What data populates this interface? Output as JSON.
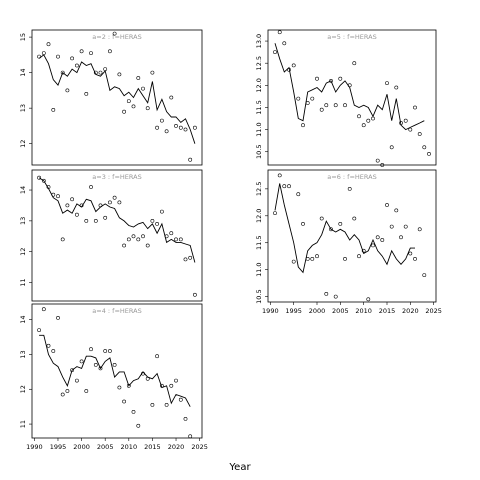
{
  "x_axis_title": "Year",
  "chart_data": [
    {
      "type": "line",
      "strip_label": "a=2 : f=HERAS",
      "x": [
        1991,
        1992,
        1993,
        1994,
        1995,
        1996,
        1997,
        1998,
        1999,
        2000,
        2001,
        2002,
        2003,
        2004,
        2005,
        2006,
        2007,
        2008,
        2009,
        2010,
        2011,
        2012,
        2013,
        2014,
        2015,
        2016,
        2017,
        2018,
        2019,
        2020,
        2021,
        2022,
        2023,
        2024
      ],
      "series": [
        {
          "style": "points",
          "values": [
            14.45,
            14.55,
            14.8,
            12.95,
            14.45,
            14.0,
            13.5,
            14.4,
            14.2,
            14.6,
            13.4,
            14.55,
            14.0,
            14.0,
            14.1,
            14.6,
            15.1,
            13.95,
            12.9,
            13.2,
            13.05,
            13.85,
            13.55,
            13.0,
            14.0,
            12.45,
            12.65,
            12.35,
            13.3,
            12.5,
            12.45,
            12.4,
            11.55,
            12.45
          ]
        },
        {
          "style": "line",
          "values": [
            14.4,
            14.5,
            14.25,
            13.8,
            13.65,
            14.0,
            13.9,
            14.1,
            14.0,
            14.3,
            14.2,
            14.25,
            13.95,
            13.9,
            14.05,
            13.5,
            13.6,
            13.55,
            13.35,
            13.45,
            13.3,
            13.55,
            13.35,
            13.15,
            13.75,
            12.95,
            13.25,
            12.9,
            12.75,
            12.75,
            12.6,
            12.7,
            12.4,
            12.0
          ]
        }
      ],
      "ylim": [
        11.4,
        15.2
      ],
      "yticks": [
        12,
        13,
        14,
        15
      ],
      "xlim": [
        1989.5,
        2025.5
      ],
      "xticks": [
        1990,
        1995,
        2000,
        2005,
        2010,
        2015,
        2020,
        2025
      ],
      "show_xticks": false
    },
    {
      "type": "line",
      "strip_label": "a=3 : f=HERAS",
      "x": [
        1991,
        1992,
        1993,
        1994,
        1995,
        1996,
        1997,
        1998,
        1999,
        2000,
        2001,
        2002,
        2003,
        2004,
        2005,
        2006,
        2007,
        2008,
        2009,
        2010,
        2011,
        2012,
        2013,
        2014,
        2015,
        2016,
        2017,
        2018,
        2019,
        2020,
        2021,
        2022,
        2023,
        2024
      ],
      "series": [
        {
          "style": "points",
          "values": [
            14.4,
            14.3,
            14.1,
            13.85,
            13.8,
            12.4,
            13.5,
            13.7,
            13.2,
            13.5,
            13.0,
            14.1,
            13.0,
            13.5,
            13.1,
            13.6,
            13.75,
            13.6,
            12.2,
            12.4,
            12.5,
            12.4,
            12.5,
            12.2,
            13.0,
            12.9,
            13.3,
            12.5,
            12.6,
            12.4,
            12.4,
            11.75,
            11.8,
            10.6
          ]
        },
        {
          "style": "line",
          "values": [
            14.4,
            14.3,
            14.05,
            13.75,
            13.65,
            13.25,
            13.35,
            13.25,
            13.55,
            13.45,
            13.7,
            13.65,
            13.3,
            13.45,
            13.55,
            13.45,
            13.4,
            13.1,
            13.0,
            12.85,
            12.8,
            12.9,
            12.95,
            12.75,
            12.9,
            12.6,
            12.9,
            12.3,
            12.4,
            12.3,
            12.3,
            12.25,
            12.2,
            11.65
          ]
        }
      ],
      "ylim": [
        10.4,
        14.65
      ],
      "yticks": [
        11,
        12,
        13,
        14
      ],
      "xlim": [
        1989.5,
        2025.5
      ],
      "xticks": [
        1990,
        1995,
        2000,
        2005,
        2010,
        2015,
        2020,
        2025
      ],
      "show_xticks": false
    },
    {
      "type": "line",
      "strip_label": "a=4 : f=HERAS",
      "x": [
        1991,
        1992,
        1993,
        1994,
        1995,
        1996,
        1997,
        1998,
        1999,
        2000,
        2001,
        2002,
        2003,
        2004,
        2005,
        2006,
        2007,
        2008,
        2009,
        2010,
        2011,
        2012,
        2013,
        2014,
        2015,
        2016,
        2017,
        2018,
        2019,
        2020,
        2021,
        2022,
        2023,
        2024
      ],
      "series": [
        {
          "style": "points",
          "values": [
            13.7,
            14.3,
            13.25,
            13.1,
            14.05,
            11.85,
            11.95,
            12.55,
            12.25,
            12.8,
            11.95,
            13.15,
            12.7,
            12.6,
            13.1,
            13.1,
            12.7,
            12.05,
            11.65,
            12.1,
            11.35,
            10.95,
            12.45,
            12.3,
            11.55,
            12.95,
            12.1,
            11.55,
            12.1,
            12.25,
            11.7,
            11.15,
            10.65,
            null
          ]
        },
        {
          "style": "line",
          "values": [
            13.55,
            13.55,
            13.0,
            12.75,
            12.65,
            12.35,
            12.1,
            12.55,
            12.65,
            12.6,
            12.95,
            12.95,
            12.9,
            12.6,
            12.8,
            12.9,
            12.35,
            12.5,
            12.5,
            12.1,
            12.25,
            12.3,
            12.5,
            12.35,
            12.3,
            12.45,
            12.05,
            12.1,
            11.6,
            11.85,
            11.8,
            11.75,
            11.5,
            null
          ]
        }
      ],
      "ylim": [
        10.6,
        14.45
      ],
      "yticks": [
        11,
        12,
        13,
        14
      ],
      "xlim": [
        1989.5,
        2025.5
      ],
      "xticks": [
        1990,
        1995,
        2000,
        2005,
        2010,
        2015,
        2020,
        2025
      ],
      "xticklabels": [
        "1990",
        "1995",
        "2000",
        "2005",
        "2010",
        "2015",
        "2020",
        "2025"
      ],
      "show_xticks": true
    },
    {
      "type": "line",
      "strip_label": "a=5 : f=HERAS",
      "x": [
        1991,
        1992,
        1993,
        1994,
        1995,
        1996,
        1997,
        1998,
        1999,
        2000,
        2001,
        2002,
        2003,
        2004,
        2005,
        2006,
        2007,
        2008,
        2009,
        2010,
        2011,
        2012,
        2013,
        2014,
        2015,
        2016,
        2017,
        2018,
        2019,
        2020,
        2021,
        2022,
        2023,
        2024
      ],
      "series": [
        {
          "style": "points",
          "values": [
            12.75,
            13.2,
            12.95,
            12.35,
            12.45,
            11.7,
            11.1,
            11.6,
            11.7,
            12.15,
            11.45,
            11.55,
            12.1,
            11.55,
            12.15,
            11.55,
            12.0,
            12.5,
            11.3,
            11.1,
            11.2,
            11.25,
            10.3,
            10.2,
            12.05,
            10.6,
            11.95,
            11.15,
            11.2,
            11.0,
            11.5,
            10.9,
            10.6,
            10.45
          ]
        },
        {
          "style": "line",
          "values": [
            12.95,
            12.6,
            12.3,
            12.4,
            11.85,
            11.25,
            11.2,
            11.85,
            11.9,
            11.95,
            11.85,
            12.05,
            12.1,
            11.85,
            12.0,
            12.1,
            11.95,
            11.55,
            11.5,
            11.55,
            11.5,
            11.3,
            11.55,
            11.45,
            11.8,
            11.2,
            11.7,
            11.1,
            11.0,
            11.05,
            11.1,
            11.15,
            11.2,
            null
          ]
        }
      ],
      "ylim": [
        10.2,
        13.25
      ],
      "yticks": [
        10.5,
        11.0,
        11.5,
        12.0,
        12.5,
        13.0
      ],
      "xlim": [
        1989.5,
        2025.5
      ],
      "xticks": [
        1990,
        1995,
        2000,
        2005,
        2010,
        2015,
        2020,
        2025
      ],
      "show_xticks": false
    },
    {
      "type": "line",
      "strip_label": "a=6 : f=HERAS",
      "x": [
        1991,
        1992,
        1993,
        1994,
        1995,
        1996,
        1997,
        1998,
        1999,
        2000,
        2001,
        2002,
        2003,
        2004,
        2005,
        2006,
        2007,
        2008,
        2009,
        2010,
        2011,
        2012,
        2013,
        2014,
        2015,
        2016,
        2017,
        2018,
        2019,
        2020,
        2021,
        2022,
        2023,
        2024
      ],
      "series": [
        {
          "style": "points",
          "values": [
            12.05,
            12.75,
            12.55,
            12.55,
            11.15,
            12.4,
            11.85,
            11.2,
            11.2,
            11.25,
            11.95,
            10.55,
            11.75,
            10.5,
            11.85,
            11.2,
            12.5,
            11.95,
            11.25,
            11.35,
            10.45,
            11.45,
            11.6,
            11.55,
            12.2,
            11.8,
            12.1,
            11.6,
            11.8,
            11.3,
            11.2,
            11.75,
            10.9,
            null
          ]
        },
        {
          "style": "line",
          "values": [
            12.1,
            12.6,
            12.2,
            11.85,
            11.5,
            11.05,
            10.95,
            11.35,
            11.45,
            11.5,
            11.65,
            11.9,
            11.75,
            11.7,
            11.75,
            11.7,
            11.55,
            11.65,
            11.55,
            11.3,
            11.35,
            11.55,
            11.35,
            11.25,
            11.1,
            11.35,
            11.2,
            11.1,
            11.2,
            11.4,
            11.4,
            null,
            null,
            null
          ]
        }
      ],
      "ylim": [
        10.4,
        12.85
      ],
      "yticks": [
        10.5,
        11.0,
        11.5,
        12.0,
        12.5
      ],
      "xlim": [
        1989.5,
        2025.5
      ],
      "xticks": [
        1990,
        1995,
        2000,
        2005,
        2010,
        2015,
        2020,
        2025
      ],
      "xticklabels": [
        "1990",
        "1995",
        "2000",
        "2005",
        "2010",
        "2015",
        "2020",
        "2025"
      ],
      "show_xticks": true
    }
  ]
}
